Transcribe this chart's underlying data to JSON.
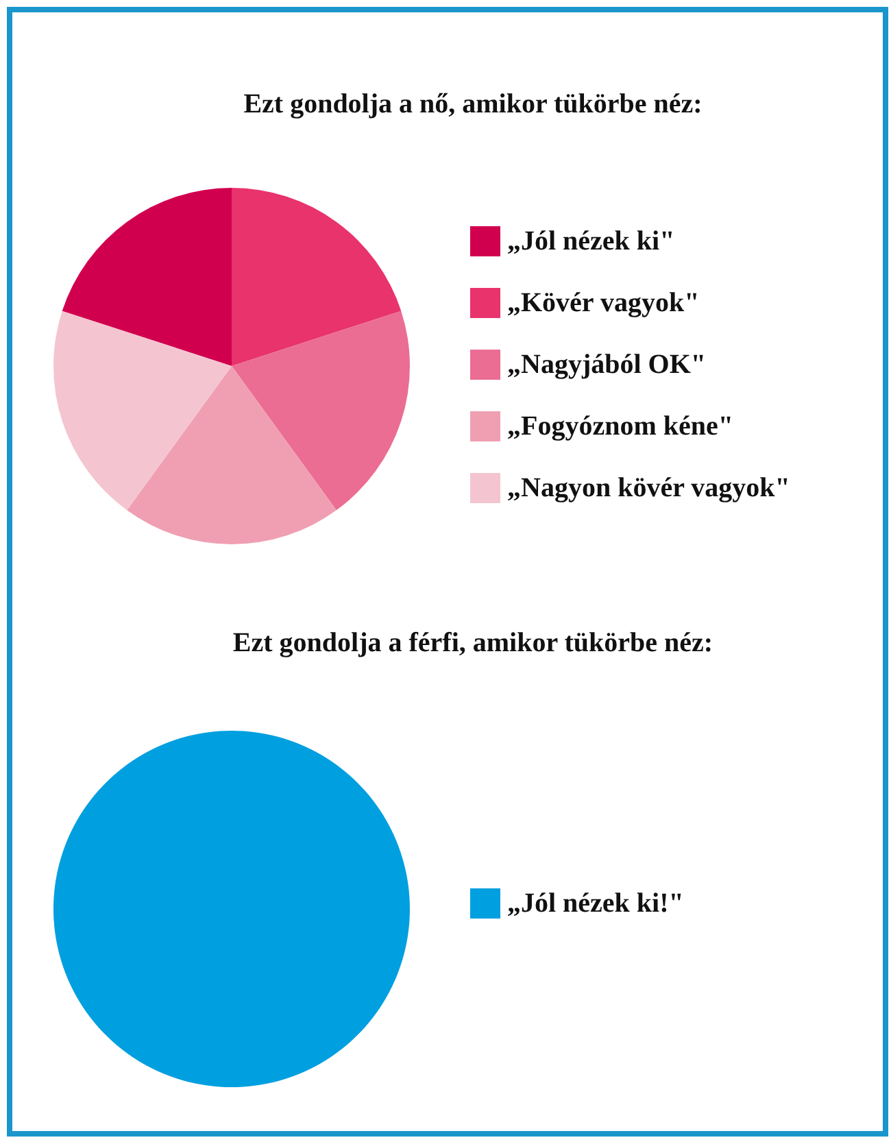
{
  "chart_data": [
    {
      "type": "pie",
      "title": "Ezt gondolja a nő, amikor tükörbe néz:",
      "categories": [
        "„Jól nézek ki\"",
        "„Kövér vagyok\"",
        "„Nagyjából OK\"",
        "„Fogyóznom kéne\"",
        "„Nagyon kövér vagyok\""
      ],
      "values": [
        20,
        20,
        20,
        20,
        20
      ],
      "colors": [
        "#d1004f",
        "#e8336d",
        "#eb6d93",
        "#f09fb2",
        "#f4c5d0"
      ],
      "legend": "right"
    },
    {
      "type": "pie",
      "title": "Ezt gondolja a férfi, amikor tükörbe néz:",
      "categories": [
        "„Jól nézek ki!\""
      ],
      "values": [
        100
      ],
      "colors": [
        "#009fe0"
      ],
      "legend": "right"
    }
  ]
}
